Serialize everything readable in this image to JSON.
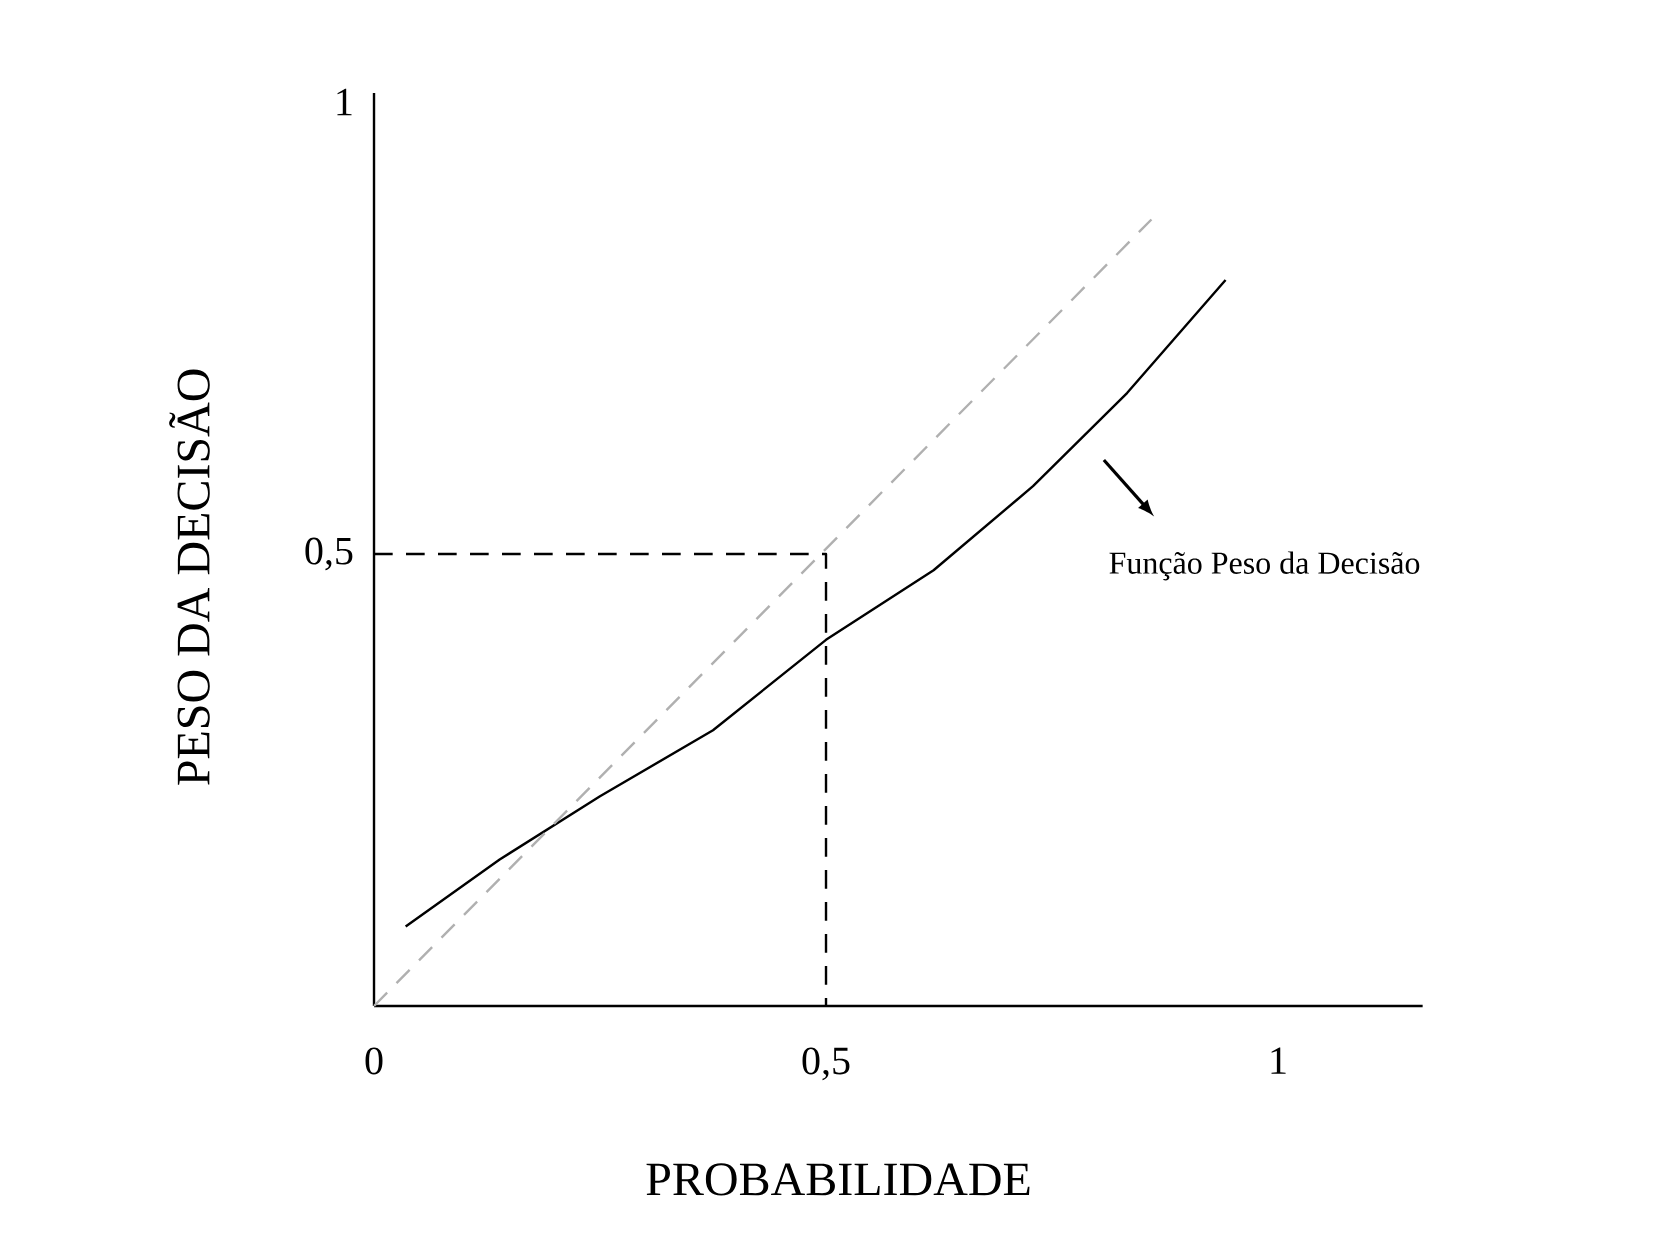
{
  "chart_data": {
    "type": "line",
    "xlabel": "PROBABILIDADE",
    "ylabel": "PESO DA DECISÃO",
    "xlim": [
      0,
      1.16
    ],
    "ylim": [
      0,
      1.01
    ],
    "xticks": [
      0,
      {
        "value": 0.5,
        "label": "0,5"
      },
      1
    ],
    "yticks": [
      {
        "value": 0.5,
        "label": "0,5"
      },
      1
    ],
    "marker": "none",
    "series": [
      {
        "color": "#000000",
        "line_style": "solid",
        "x": [
          0.035,
          0.139,
          0.25,
          0.375,
          0.5,
          0.619,
          0.729,
          0.833,
          0.942
        ],
        "values": [
          0.088,
          0.162,
          0.232,
          0.305,
          0.405,
          0.482,
          0.575,
          0.678,
          0.803
        ]
      },
      {
        "color": "#b0b0b0",
        "line_style": "dashed",
        "x": [
          0,
          0.86
        ],
        "values": [
          0,
          0.87
        ]
      },
      {
        "color": "#000000",
        "line_style": "dashed",
        "x": [
          0,
          0.5,
          0.5
        ],
        "values": [
          0.5,
          0.5,
          0
        ]
      }
    ],
    "annotations": [
      "Função Peso da Decisão"
    ]
  }
}
